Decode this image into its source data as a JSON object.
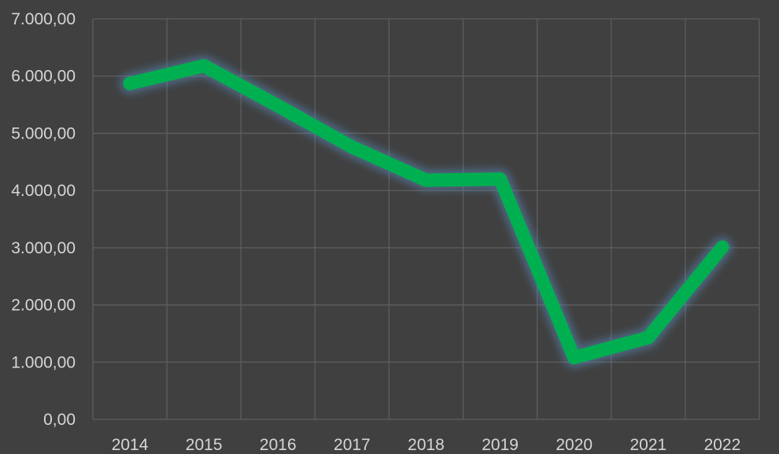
{
  "chart_data": {
    "type": "line",
    "x": [
      "2014",
      "2015",
      "2016",
      "2017",
      "2018",
      "2019",
      "2020",
      "2021",
      "2022"
    ],
    "series": [
      {
        "values": [
          5870,
          6180,
          5480,
          4760,
          4180,
          4200,
          1080,
          1430,
          3010
        ]
      }
    ],
    "ylim": [
      0,
      7000
    ],
    "y_ticks": [
      0,
      1000,
      2000,
      3000,
      4000,
      5000,
      6000,
      7000
    ],
    "y_tick_labels": [
      "0,00",
      "1.000,00",
      "2.000,00",
      "3.000,00",
      "4.000,00",
      "5.000,00",
      "6.000,00",
      "7.000,00"
    ],
    "grid": true,
    "legend": "none",
    "line_color": "#00b050",
    "glow_color": "#5b9bd5",
    "background_color": "#404040",
    "grid_color": "#5e5e5e",
    "text_color": "#d6d6d6"
  }
}
